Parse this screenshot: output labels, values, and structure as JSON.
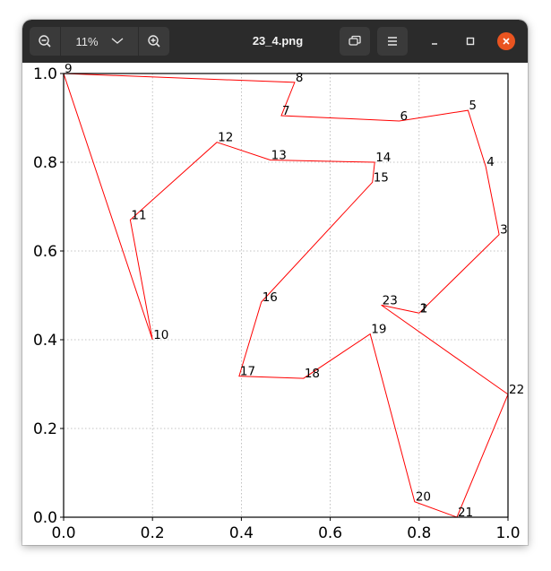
{
  "window": {
    "title": "23_4.png",
    "zoom_level": "11%",
    "colors": {
      "headerbar": "#2b2b2b",
      "button": "#3a3a3a",
      "close": "#e95420",
      "route": "#ff0000"
    },
    "icons": {
      "zoom_out": "zoom-out-icon",
      "zoom_menu": "chevron-down-icon",
      "zoom_in": "zoom-in-icon",
      "view_mode": "window-mode-icon",
      "menu": "hamburger-menu-icon",
      "minimize": "minimize-icon",
      "maximize": "maximize-icon",
      "close": "close-icon"
    }
  },
  "chart_data": {
    "type": "line",
    "xlim": [
      0.0,
      1.0
    ],
    "ylim": [
      0.0,
      1.0
    ],
    "grid": true,
    "x_ticks": [
      "0.0",
      "0.2",
      "0.4",
      "0.6",
      "0.8",
      "1.0"
    ],
    "y_ticks": [
      "0.0",
      "0.2",
      "0.4",
      "0.6",
      "0.8",
      "1.0"
    ],
    "points": [
      {
        "label": "1",
        "x": 0.8,
        "y": 0.46
      },
      {
        "label": "2",
        "x": 0.8,
        "y": 0.46
      },
      {
        "label": "3",
        "x": 0.98,
        "y": 0.637
      },
      {
        "label": "4",
        "x": 0.95,
        "y": 0.79
      },
      {
        "label": "5",
        "x": 0.91,
        "y": 0.917
      },
      {
        "label": "6",
        "x": 0.755,
        "y": 0.893
      },
      {
        "label": "7",
        "x": 0.49,
        "y": 0.905
      },
      {
        "label": "8",
        "x": 0.52,
        "y": 0.98
      },
      {
        "label": "9",
        "x": 0.0,
        "y": 1.0
      },
      {
        "label": "10",
        "x": 0.2,
        "y": 0.4
      },
      {
        "label": "11",
        "x": 0.15,
        "y": 0.67
      },
      {
        "label": "12",
        "x": 0.345,
        "y": 0.845
      },
      {
        "label": "13",
        "x": 0.465,
        "y": 0.805
      },
      {
        "label": "14",
        "x": 0.7,
        "y": 0.8
      },
      {
        "label": "15",
        "x": 0.695,
        "y": 0.755
      },
      {
        "label": "16",
        "x": 0.445,
        "y": 0.485
      },
      {
        "label": "17",
        "x": 0.395,
        "y": 0.318
      },
      {
        "label": "18",
        "x": 0.54,
        "y": 0.313
      },
      {
        "label": "19",
        "x": 0.69,
        "y": 0.413
      },
      {
        "label": "20",
        "x": 0.79,
        "y": 0.035
      },
      {
        "label": "21",
        "x": 0.885,
        "y": 0.0
      },
      {
        "label": "22",
        "x": 1.0,
        "y": 0.277
      },
      {
        "label": "23",
        "x": 0.715,
        "y": 0.478
      }
    ],
    "path_order": [
      "2",
      "3",
      "4",
      "5",
      "6",
      "7",
      "8",
      "9",
      "10",
      "11",
      "12",
      "13",
      "14",
      "15",
      "16",
      "17",
      "18",
      "19",
      "20",
      "21",
      "22",
      "23",
      "1"
    ]
  }
}
